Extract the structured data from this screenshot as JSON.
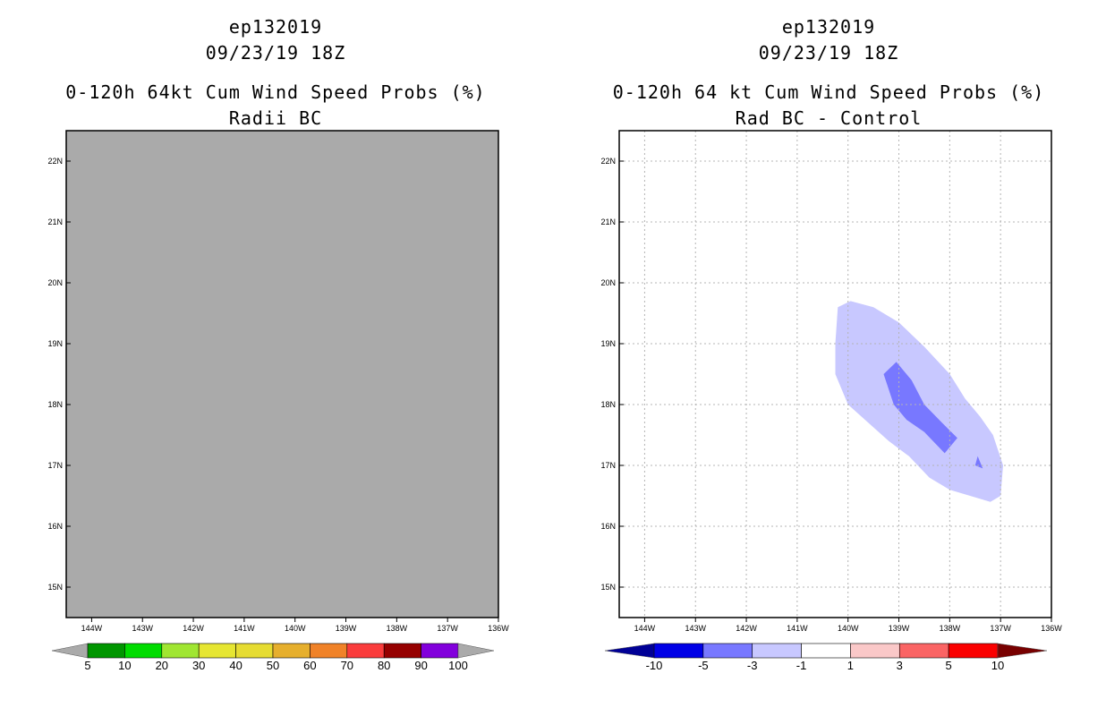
{
  "chart_data": [
    {
      "type": "heatmap",
      "title_lines": [
        "ep132019",
        "09/23/19 18Z",
        "0-120h 64kt Cum Wind Speed Probs (%)",
        "Radii BC"
      ],
      "xlim": [
        -144.5,
        -136
      ],
      "ylim": [
        14.5,
        22.5
      ],
      "x_ticks": [
        -144,
        -143,
        -142,
        -141,
        -140,
        -139,
        -138,
        -137,
        -136
      ],
      "x_tick_labels": [
        "144W",
        "143W",
        "142W",
        "141W",
        "140W",
        "139W",
        "138W",
        "137W",
        "136W"
      ],
      "y_ticks": [
        15,
        16,
        17,
        18,
        19,
        20,
        21,
        22
      ],
      "y_tick_labels": [
        "15N",
        "16N",
        "17N",
        "18N",
        "19N",
        "20N",
        "21N",
        "22N"
      ],
      "fill": "#aaaaaa",
      "grid": false,
      "contours": [],
      "colorbar": {
        "colors": [
          "#009600",
          "#00dc00",
          "#a0e632",
          "#e6e632",
          "#e6dc32",
          "#e6af2d",
          "#f08228",
          "#fa3c3c",
          "#960000",
          "#8200dc"
        ],
        "end_colors": [
          "#aaaaaa",
          "#aaaaaa"
        ],
        "labels": [
          "5",
          "10",
          "20",
          "30",
          "40",
          "50",
          "60",
          "70",
          "80",
          "90",
          "100"
        ]
      }
    },
    {
      "type": "heatmap",
      "title_lines": [
        "ep132019",
        "09/23/19 18Z",
        "0-120h 64 kt Cum Wind Speed Probs (%)",
        "Rad BC - Control"
      ],
      "xlim": [
        -144.5,
        -136
      ],
      "ylim": [
        14.5,
        22.5
      ],
      "x_ticks": [
        -144,
        -143,
        -142,
        -141,
        -140,
        -139,
        -138,
        -137,
        -136
      ],
      "x_tick_labels": [
        "144W",
        "143W",
        "142W",
        "141W",
        "140W",
        "139W",
        "138W",
        "137W",
        "136W"
      ],
      "y_ticks": [
        15,
        16,
        17,
        18,
        19,
        20,
        21,
        22
      ],
      "y_tick_labels": [
        "15N",
        "16N",
        "17N",
        "18N",
        "19N",
        "20N",
        "21N",
        "22N"
      ],
      "fill": "#ffffff",
      "grid": true,
      "contours": [
        {
          "level": "-3 to -1",
          "color": "#c8c8ff",
          "points": [
            [
              -140.2,
              19.6
            ],
            [
              -139.95,
              19.7
            ],
            [
              -139.5,
              19.6
            ],
            [
              -139,
              19.35
            ],
            [
              -138.5,
              18.95
            ],
            [
              -138,
              18.5
            ],
            [
              -137.7,
              18.1
            ],
            [
              -137.4,
              17.8
            ],
            [
              -137.15,
              17.5
            ],
            [
              -136.95,
              17.0
            ],
            [
              -137.0,
              16.5
            ],
            [
              -137.2,
              16.4
            ],
            [
              -137.6,
              16.5
            ],
            [
              -138,
              16.6
            ],
            [
              -138.4,
              16.8
            ],
            [
              -138.8,
              17.15
            ],
            [
              -139.2,
              17.4
            ],
            [
              -139.6,
              17.7
            ],
            [
              -140,
              18.0
            ],
            [
              -140.25,
              18.5
            ],
            [
              -140.25,
              19.0
            ]
          ]
        },
        {
          "level": "-5 to -3",
          "color": "#7878ff",
          "points": [
            [
              -139.3,
              18.5
            ],
            [
              -139.05,
              18.7
            ],
            [
              -138.75,
              18.4
            ],
            [
              -138.5,
              18.0
            ],
            [
              -138.15,
              17.7
            ],
            [
              -137.85,
              17.45
            ],
            [
              -138.1,
              17.2
            ],
            [
              -138.5,
              17.55
            ],
            [
              -138.85,
              17.75
            ],
            [
              -139.1,
              18.0
            ]
          ]
        },
        {
          "level": "-5 to -3",
          "color": "#7878ff",
          "points": [
            [
              -137.45,
              17.15
            ],
            [
              -137.35,
              16.95
            ],
            [
              -137.5,
              17.0
            ]
          ]
        }
      ],
      "colorbar": {
        "colors": [
          "#0000e6",
          "#7878ff",
          "#c8c8ff",
          "#ffffff",
          "#fac8c8",
          "#fa6464",
          "#fa0000"
        ],
        "end_colors": [
          "#000096",
          "#780000"
        ],
        "labels": [
          "-10",
          "-5",
          "-3",
          "-1",
          "1",
          "3",
          "5",
          "10"
        ]
      }
    }
  ]
}
